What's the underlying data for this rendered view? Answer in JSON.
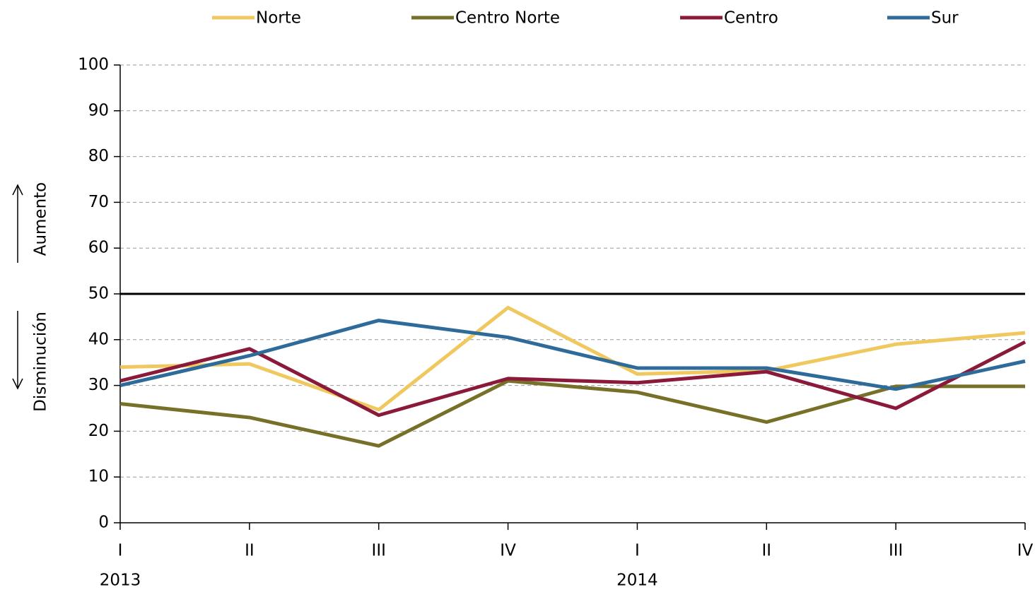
{
  "chart_data": {
    "type": "line",
    "categories": [
      "I",
      "II",
      "III",
      "IV",
      "I",
      "II",
      "III",
      "IV"
    ],
    "years": [
      "2013",
      null,
      null,
      null,
      "2014",
      null,
      null,
      null
    ],
    "series": [
      {
        "name": "Norte",
        "color": "#f0c860",
        "values": [
          34,
          34.7,
          24.7,
          47,
          32.5,
          33.2,
          39,
          41.5
        ]
      },
      {
        "name": "Centro Norte",
        "color": "#767028",
        "values": [
          26,
          23,
          16.8,
          31,
          28.5,
          22,
          29.8,
          29.8
        ]
      },
      {
        "name": "Centro",
        "color": "#8b1a3a",
        "values": [
          31,
          38,
          23.5,
          31.5,
          30.6,
          33,
          25,
          39.5
        ]
      },
      {
        "name": "Sur",
        "color": "#2e6b9a",
        "values": [
          30,
          36.5,
          44.2,
          40.5,
          33.8,
          33.8,
          29.2,
          35.3
        ]
      }
    ],
    "ylim": [
      0,
      100
    ],
    "yticks": [
      0,
      10,
      20,
      30,
      40,
      50,
      60,
      70,
      80,
      90,
      100
    ],
    "reference_line": 50,
    "annotations": {
      "up": "Aumento",
      "down": "Disminución"
    },
    "grid": true,
    "legend": "top"
  }
}
